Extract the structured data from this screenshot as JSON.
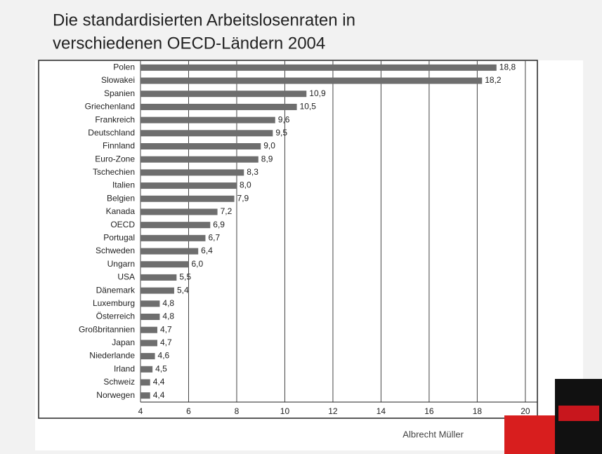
{
  "chart_data": {
    "type": "hbar",
    "title_lines": [
      "Die standardisierten Arbeitslosenraten in",
      "verschiedenen OECD-Ländern 2004"
    ],
    "categories": [
      "Polen",
      "Slowakei",
      "Spanien",
      "Griechenland",
      "Frankreich",
      "Deutschland",
      "Finnland",
      "Euro-Zone",
      "Tschechien",
      "Italien",
      "Belgien",
      "Kanada",
      "OECD",
      "Portugal",
      "Schweden",
      "Ungarn",
      "USA",
      "Dänemark",
      "Luxemburg",
      "Österreich",
      "Großbritannien",
      "Japan",
      "Niederlande",
      "Irland",
      "Schweiz",
      "Norwegen"
    ],
    "values": [
      18.8,
      18.2,
      10.9,
      10.5,
      9.6,
      9.5,
      9.0,
      8.9,
      8.3,
      8.0,
      7.9,
      7.2,
      6.9,
      6.7,
      6.4,
      6.0,
      5.5,
      5.4,
      4.8,
      4.8,
      4.7,
      4.7,
      4.6,
      4.5,
      4.4,
      4.4
    ],
    "value_labels": [
      "18,8",
      "18,2",
      "10,9",
      "10,5",
      "9,6",
      "9,5",
      "9,0",
      "8,9",
      "8,3",
      "8,0",
      "7,9",
      "7,2",
      "6,9",
      "6,7",
      "6,4",
      "6,0",
      "5,5",
      "5,4",
      "4,8",
      "4,8",
      "4,7",
      "4,7",
      "4,6",
      "4,5",
      "4,4",
      "4,4"
    ],
    "color": "#6e6e6e",
    "xlim": [
      4,
      20.5
    ],
    "xticks": [
      4,
      6,
      8,
      10,
      12,
      14,
      16,
      18,
      20
    ],
    "grid": true,
    "author": "Albrecht Müller"
  }
}
